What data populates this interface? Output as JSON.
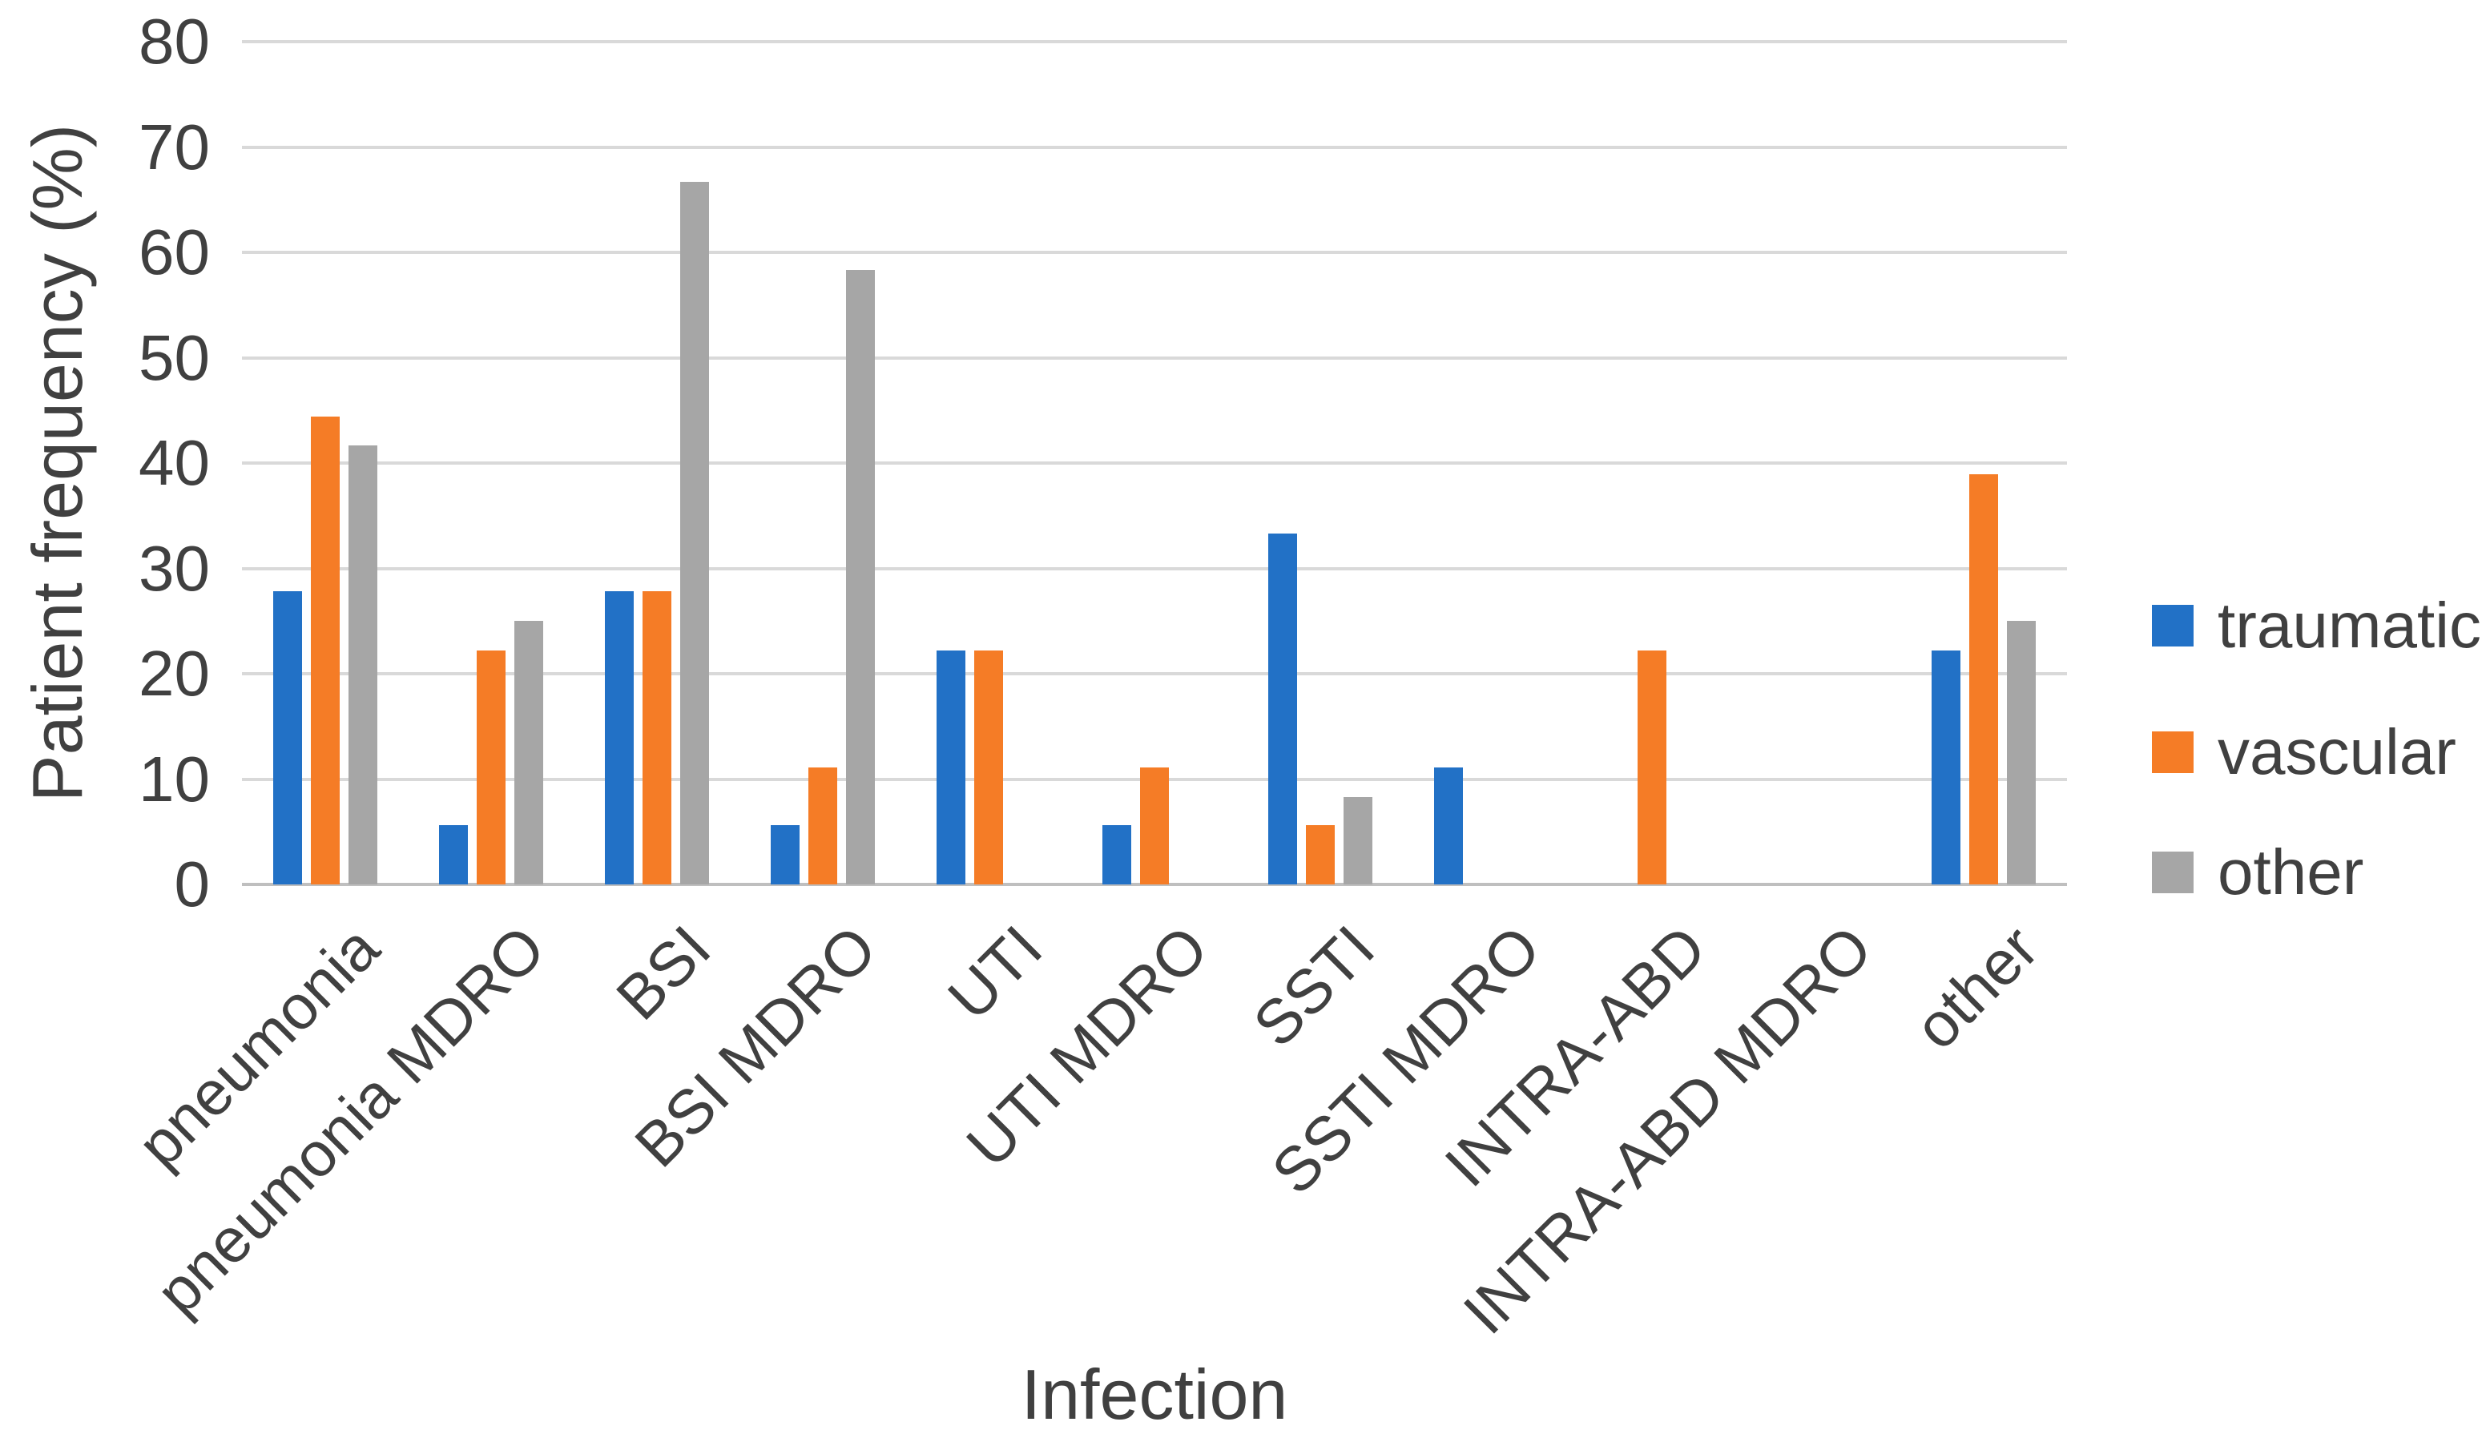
{
  "chart_data": {
    "type": "bar",
    "title": "",
    "xlabel": "Infection",
    "ylabel": "Patient frequency (%)",
    "ylim": [
      0,
      80
    ],
    "yticks": [
      0,
      10,
      20,
      30,
      40,
      50,
      60,
      70,
      80
    ],
    "grid": true,
    "legend_position": "right",
    "categories": [
      "pneumonia",
      "pneumonia MDRO",
      "BSI",
      "BSI MDRO",
      "UTI",
      "UTI MDRO",
      "SSTI",
      "SSTI MDRO",
      "INTRA-ABD",
      "INTRA-ABD MDRO",
      "other"
    ],
    "series": [
      {
        "name": "traumatic",
        "color": "#2271C6",
        "values": [
          27.8,
          5.6,
          27.8,
          5.6,
          22.2,
          5.6,
          33.3,
          11.1,
          0,
          0,
          22.2
        ]
      },
      {
        "name": "vascular",
        "color": "#F57C26",
        "values": [
          44.4,
          22.2,
          27.8,
          11.1,
          22.2,
          11.1,
          5.6,
          0,
          22.2,
          0,
          38.9
        ]
      },
      {
        "name": "other",
        "color": "#A6A6A6",
        "values": [
          41.7,
          25,
          66.7,
          58.3,
          0,
          0,
          8.3,
          0,
          0,
          0,
          25
        ]
      }
    ]
  },
  "colors": {
    "gridline": "#D9D9D9",
    "baseline": "#BFBFBF",
    "text": "#404040"
  }
}
